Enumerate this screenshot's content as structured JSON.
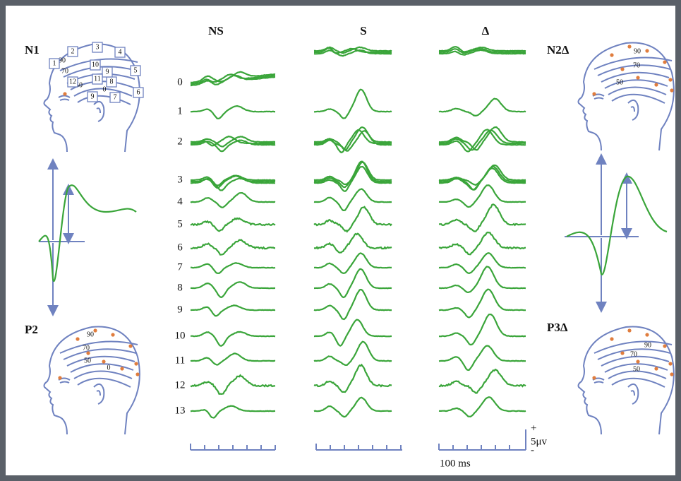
{
  "columns": [
    "NS",
    "S",
    "Δ"
  ],
  "rows": [
    "0",
    "1",
    "2",
    "3",
    "4",
    "5",
    "6",
    "7",
    "8",
    "9",
    "10",
    "11",
    "12",
    "13"
  ],
  "panels": {
    "n1": {
      "label": "N1",
      "contours": [
        "90",
        "70",
        "50",
        "0"
      ],
      "electrodes": [
        "1",
        "2",
        "3",
        "4",
        "5",
        "6",
        "7",
        "8",
        "9",
        "10",
        "11",
        "12",
        "9"
      ]
    },
    "p2": {
      "label": "P2",
      "contours": [
        "90",
        "70",
        "50",
        "0"
      ]
    },
    "n2": {
      "label": "N2Δ",
      "contours": [
        "90",
        "70",
        "50"
      ]
    },
    "p3": {
      "label": "P3Δ",
      "contours": [
        "90",
        "70",
        "50"
      ]
    }
  },
  "scale": {
    "plus": "+",
    "amplitude": "5μv",
    "minus": "-",
    "time": "100 ms"
  }
}
